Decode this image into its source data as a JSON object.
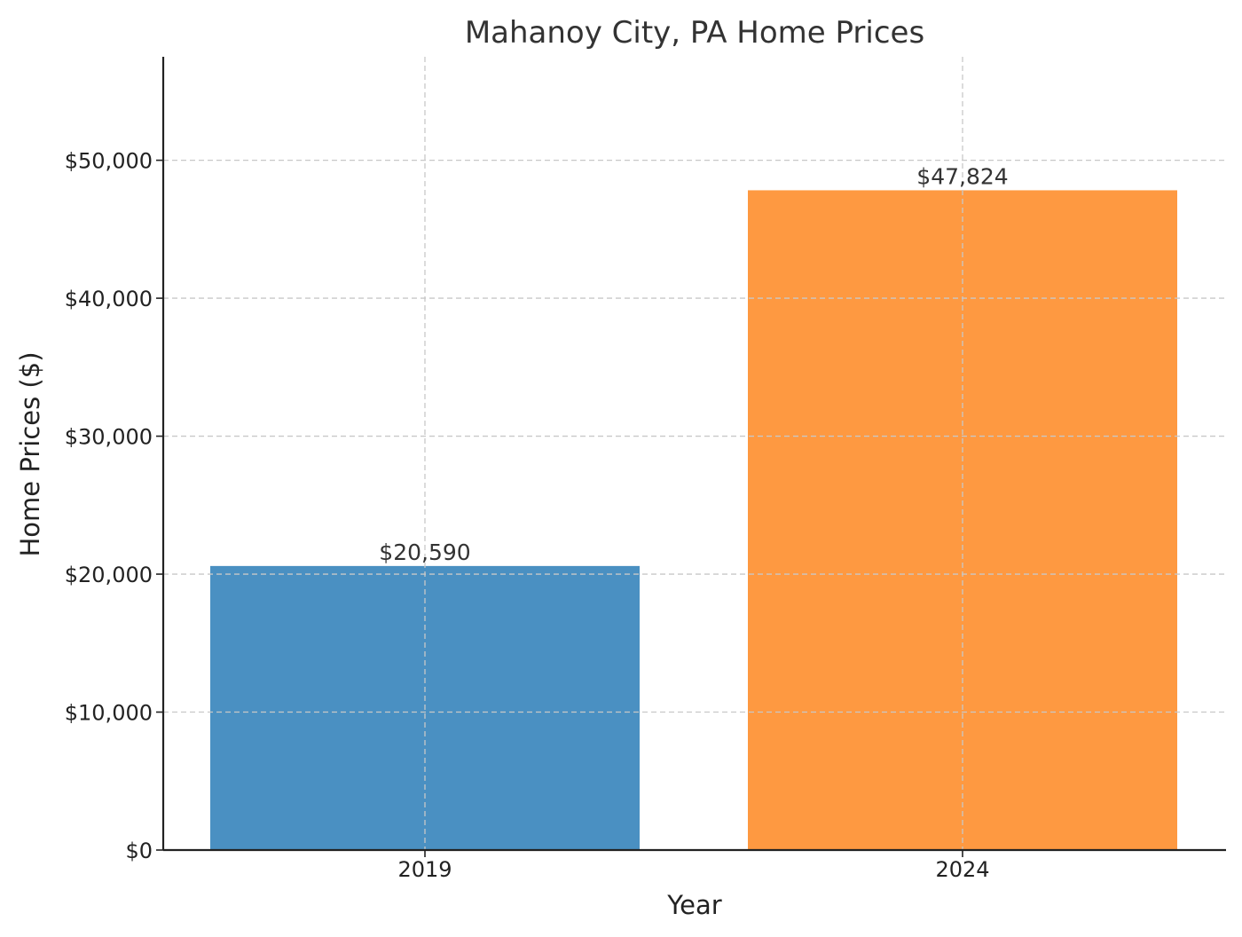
{
  "chart_data": {
    "type": "bar",
    "title": "Mahanoy City, PA Home Prices",
    "xlabel": "Year",
    "ylabel": "Home Prices ($)",
    "categories": [
      "2019",
      "2024"
    ],
    "values": [
      20590,
      47824
    ],
    "data_labels": [
      "$20,590",
      "$47,824"
    ],
    "colors": [
      "#4a90c2",
      "#fe9941"
    ],
    "ylim": [
      0,
      57500
    ],
    "yticks": [
      0,
      10000,
      20000,
      30000,
      40000,
      50000
    ],
    "ytick_labels": [
      "$0",
      "$10,000",
      "$20,000",
      "$30,000",
      "$40,000",
      "$50,000"
    ],
    "grid": true,
    "grid_style": "dashed"
  }
}
